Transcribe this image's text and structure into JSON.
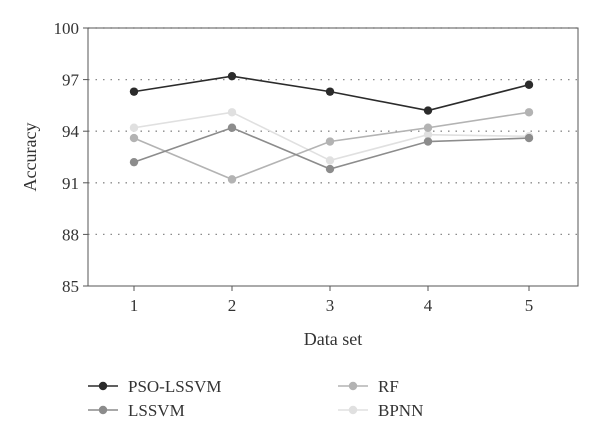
{
  "chart_data": {
    "type": "line",
    "title": "",
    "xlabel": "Data set",
    "ylabel": "Accuracy",
    "x": [
      1,
      2,
      3,
      4,
      5
    ],
    "x_tick_labels": [
      "1",
      "2",
      "3",
      "4",
      "5"
    ],
    "y_tick_labels": [
      "85",
      "88",
      "91",
      "94",
      "97",
      "100"
    ],
    "ylim": [
      85,
      100
    ],
    "yticks": [
      85,
      88,
      91,
      94,
      97,
      100
    ],
    "grid": "horizontal dotted",
    "legend_position": "bottom",
    "series": [
      {
        "name": "PSO-LSSVM",
        "color": "#2b2b2b",
        "values": [
          96.3,
          97.2,
          96.3,
          95.2,
          96.7
        ]
      },
      {
        "name": "LSSVM",
        "color": "#8c8c8c",
        "values": [
          92.2,
          94.2,
          91.8,
          93.4,
          93.6
        ]
      },
      {
        "name": "RF",
        "color": "#b3b3b3",
        "values": [
          93.6,
          91.2,
          93.4,
          94.2,
          95.1
        ]
      },
      {
        "name": "BPNN",
        "color": "#e0e0e0",
        "values": [
          94.2,
          95.1,
          92.3,
          93.8,
          93.7
        ]
      }
    ]
  }
}
